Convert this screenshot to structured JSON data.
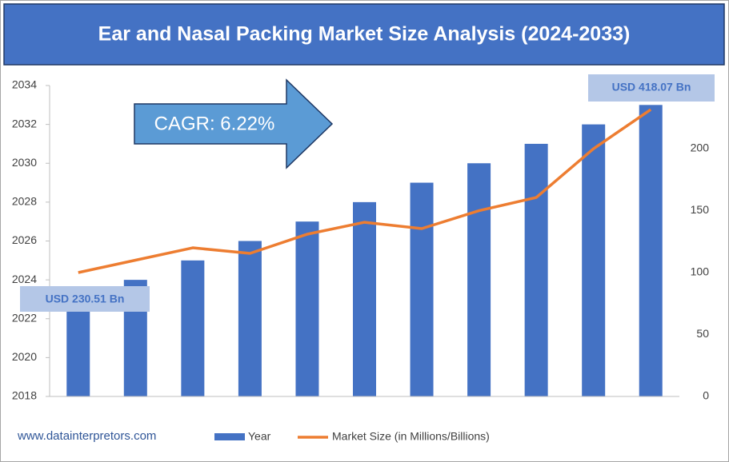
{
  "chart_data": {
    "type": "bar",
    "title": "Ear and Nasal Packing Market Size Analysis (2024-2033)",
    "categories": [
      null,
      null,
      null,
      null,
      null,
      null,
      null,
      null,
      null,
      null,
      null
    ],
    "series": [
      {
        "name": "Year",
        "color": "#4472c4",
        "values": [
          2023,
          2024,
          2025,
          2026,
          2027,
          2028,
          2029,
          2030,
          2031,
          2032,
          2033
        ]
      },
      {
        "name": "Market Size (in Millions/Billions)",
        "color": "#ed7d31",
        "type": "line",
        "axis": "y2",
        "values": [
          100,
          110,
          120,
          115.5,
          131,
          140.6,
          135.5,
          150,
          160.6,
          200,
          231.6
        ]
      }
    ],
    "ylim": [
      2018,
      2034
    ],
    "yticks": [
      2018,
      2020,
      2022,
      2024,
      2026,
      2028,
      2030,
      2032,
      2034
    ],
    "y2lim": [
      0,
      251
    ],
    "y2ticks": [
      0,
      50,
      100,
      150,
      200
    ],
    "annotations": [
      "USD 230.51 Bn",
      "USD 418.07 Bn",
      "CAGR: 6.22%"
    ],
    "source": "www.datainterpretors.com"
  }
}
